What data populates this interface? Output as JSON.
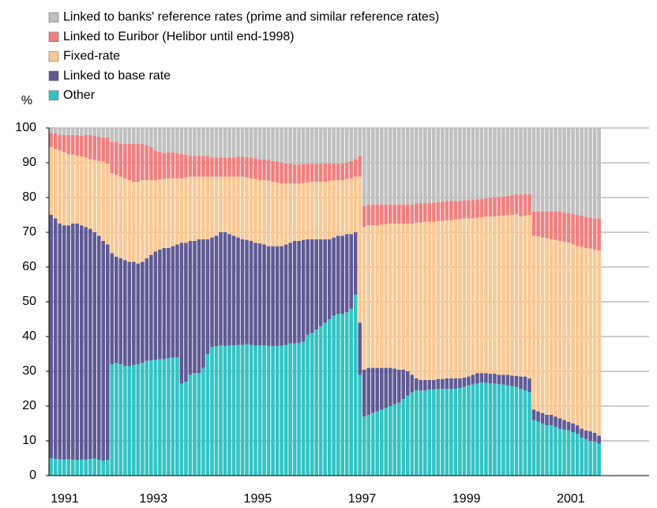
{
  "chart_data": {
    "type": "stacked_bar",
    "y_label": "%",
    "ylim": [
      0,
      100
    ],
    "yticks": [
      0,
      10,
      20,
      30,
      40,
      50,
      60,
      70,
      80,
      90,
      100
    ],
    "grid": true,
    "legend": "top",
    "categories": [
      "1991",
      null,
      null,
      null,
      null,
      null,
      null,
      null,
      null,
      null,
      null,
      null,
      null,
      null,
      null,
      null,
      null,
      null,
      null,
      null,
      null,
      null,
      null,
      null,
      "1993",
      null,
      null,
      null,
      null,
      null,
      null,
      null,
      null,
      null,
      null,
      null,
      null,
      null,
      null,
      null,
      null,
      null,
      null,
      null,
      null,
      null,
      null,
      null,
      "1995",
      null,
      null,
      null,
      null,
      null,
      null,
      null,
      null,
      null,
      null,
      null,
      null,
      null,
      null,
      null,
      null,
      null,
      null,
      null,
      null,
      null,
      null,
      null,
      "1997",
      null,
      null,
      null,
      null,
      null,
      null,
      null,
      null,
      null,
      null,
      null,
      null,
      null,
      null,
      null,
      null,
      null,
      null,
      null,
      null,
      null,
      null,
      null,
      "1999",
      null,
      null,
      null,
      null,
      null,
      null,
      null,
      null,
      null,
      null,
      null,
      null,
      null,
      null,
      null,
      null,
      null,
      null,
      null,
      null,
      null,
      null,
      null,
      "2001",
      null,
      null,
      null,
      null,
      null,
      null,
      null,
      null,
      null,
      null,
      null,
      null,
      null,
      null,
      null,
      null,
      null
    ],
    "series": [
      {
        "name": "Other",
        "color": "#33c3c3",
        "values": [
          5,
          4.8,
          4.7,
          4.6,
          4.7,
          4.6,
          4.5,
          4.6,
          4.6,
          4.7,
          5,
          4.5,
          4.3,
          4.5,
          32,
          32.5,
          32,
          31.5,
          31.5,
          31.8,
          32,
          32.5,
          33,
          33.2,
          33.3,
          33.5,
          33.5,
          33.8,
          34,
          34,
          26.5,
          27,
          29,
          29.5,
          29.5,
          31,
          35,
          37,
          37.2,
          37.5,
          37.3,
          37.5,
          37.5,
          37.6,
          37.6,
          37.8,
          37.6,
          37.4,
          37.5,
          37.5,
          37.3,
          37.2,
          37.3,
          37.4,
          37.6,
          38,
          38,
          38.2,
          38.5,
          40.5,
          41,
          42,
          43,
          44,
          45,
          46,
          46.5,
          46.5,
          47,
          48,
          52,
          29,
          17,
          17.5,
          18,
          18.5,
          19,
          19.5,
          20,
          20.5,
          21,
          22,
          23,
          24,
          24.5,
          24.5,
          24.5,
          24.8,
          24.8,
          25,
          25,
          25,
          25,
          25,
          25.2,
          25.5,
          26,
          26.2,
          26.5,
          26.8,
          26.7,
          26.5,
          26.5,
          26.3,
          26.2,
          26,
          25.8,
          25.5,
          25,
          24.5,
          24,
          16,
          15.5,
          15,
          14.5,
          14.5,
          14,
          13.5,
          13.2,
          13,
          12.5,
          12,
          11,
          10.5,
          10,
          9.8,
          9.2,
          null,
          null,
          null,
          null,
          null,
          null,
          null,
          null,
          null,
          null,
          null
        ]
      },
      {
        "name": "Linked to base rate",
        "color": "#5f5a94",
        "values": [
          70,
          69.2,
          67.8,
          67.4,
          67.3,
          67.9,
          68,
          67.4,
          66.9,
          66.3,
          65,
          64.5,
          63.2,
          62,
          32,
          30.5,
          30.5,
          30.5,
          30,
          29.7,
          29,
          29,
          29.5,
          30.3,
          31.2,
          31.5,
          32,
          31.7,
          32,
          32.5,
          40.5,
          40,
          38.5,
          38,
          38.5,
          37,
          33,
          31.5,
          31.8,
          32.5,
          32.7,
          32,
          31.5,
          30.9,
          30.4,
          30,
          29.9,
          29.6,
          29.3,
          29,
          28.7,
          28.8,
          28.7,
          28.6,
          28.9,
          29,
          29.5,
          29.3,
          29.3,
          27.5,
          27,
          26,
          25,
          24,
          23,
          22.5,
          22.5,
          22.5,
          22.5,
          21.5,
          18,
          15,
          13.5,
          13.5,
          13,
          12.5,
          12,
          11.5,
          11,
          10.3,
          9.5,
          8.5,
          7,
          5,
          3.5,
          3,
          3,
          2.7,
          2.7,
          2.8,
          2.8,
          3,
          3,
          3,
          2.8,
          2.7,
          2.5,
          2.8,
          3,
          2.7,
          2.8,
          2.8,
          2.8,
          2.7,
          2.8,
          3,
          3,
          3.2,
          3.5,
          4,
          4,
          3,
          3,
          3,
          3,
          3,
          3,
          3,
          2.8,
          2.5,
          2.5,
          2.5,
          2.5,
          2.5,
          2.8,
          2.5,
          2.3,
          null,
          null,
          null,
          null,
          null,
          null,
          null,
          null,
          null,
          null,
          null
        ]
      },
      {
        "name": "Fixed-rate",
        "color": "#f9c894",
        "values": [
          19.5,
          20,
          21,
          21,
          20.5,
          19.8,
          19.5,
          19.8,
          20,
          20,
          20.8,
          21.5,
          22.8,
          23.3,
          23,
          23.5,
          23.5,
          23.5,
          23.5,
          23,
          23.5,
          23.5,
          22.5,
          21.5,
          20.5,
          20.2,
          19.8,
          20,
          19.5,
          19,
          18.5,
          18.8,
          18.5,
          18.5,
          18,
          18,
          18,
          17.5,
          17,
          16,
          16,
          16.5,
          17,
          17.5,
          18,
          18,
          18,
          18.3,
          18.2,
          18.5,
          18.8,
          18.5,
          18.3,
          18,
          17.5,
          17,
          16.5,
          16.5,
          16.4,
          16.3,
          16.5,
          16.5,
          16.5,
          16.5,
          16.8,
          16.5,
          16,
          16,
          15.8,
          16,
          16,
          42,
          41,
          41,
          41,
          41,
          41.2,
          41.3,
          41.5,
          41.7,
          42,
          42,
          42.5,
          43.5,
          44.8,
          45.3,
          45.5,
          45.5,
          45.5,
          45.4,
          45.5,
          45.5,
          45.5,
          45.7,
          45.8,
          45.8,
          45.5,
          45,
          44.7,
          44.8,
          45,
          45.2,
          45.2,
          45.7,
          45.8,
          46,
          46.2,
          46.5,
          46,
          46.3,
          47,
          50,
          50.3,
          50.5,
          50.8,
          50.5,
          50.8,
          51,
          51.3,
          51.5,
          51.5,
          51.5,
          52.3,
          52.5,
          52.5,
          52.7,
          53.3,
          null,
          null,
          null,
          null,
          null,
          null,
          null,
          null,
          null,
          null,
          null
        ]
      },
      {
        "name": "Linked to Euribor (Helibor until end-1998)",
        "color": "#f08080",
        "values": [
          4,
          4.5,
          4.5,
          5,
          5.5,
          5.7,
          6,
          6,
          6.5,
          7,
          7,
          7,
          7,
          7.5,
          9,
          9.5,
          9.5,
          10,
          10.5,
          11,
          11,
          10.5,
          10,
          9.5,
          8.5,
          8,
          7.5,
          7.5,
          7.5,
          7.3,
          7,
          6.5,
          6,
          6,
          6,
          6,
          6,
          5.5,
          5.5,
          5.5,
          5.5,
          5.5,
          5.5,
          5.7,
          5.8,
          5.8,
          6,
          6,
          6,
          6,
          6,
          6,
          6,
          6,
          5.8,
          5.8,
          5.5,
          5.5,
          5.5,
          5.5,
          5.3,
          5.3,
          5.3,
          5.3,
          5,
          4.8,
          4.8,
          4.8,
          4.7,
          5,
          5,
          6,
          6,
          6,
          6,
          6,
          5.8,
          5.7,
          5.5,
          5.5,
          5.5,
          5.5,
          5.5,
          5.5,
          5.5,
          5.5,
          5.5,
          5.5,
          5.5,
          5.5,
          5.5,
          5.5,
          5.5,
          5.3,
          5.2,
          5.2,
          5.2,
          5.3,
          5.3,
          5.3,
          5.3,
          5.5,
          5.5,
          5.5,
          5.5,
          5.5,
          5.7,
          5.7,
          6.3,
          6.2,
          6,
          7,
          7.2,
          7.5,
          7.7,
          8,
          8.2,
          8.5,
          8.5,
          8.5,
          8.8,
          9,
          9,
          9,
          9,
          9,
          9.2,
          null,
          null,
          null,
          null,
          null,
          null,
          null,
          null,
          null,
          null,
          null
        ]
      },
      {
        "name": "Linked to banks' reference rates (prime and similar reference rates)",
        "color": "#c0c0c0",
        "values": [
          1.5,
          1.5,
          2,
          2,
          2,
          2,
          2,
          2.2,
          2,
          2,
          2.2,
          2.5,
          2.7,
          2.7,
          4,
          4,
          4.5,
          4.5,
          4.5,
          4.5,
          4.5,
          4.5,
          5,
          5.5,
          6.5,
          6.8,
          7.2,
          7,
          7,
          7.2,
          7.5,
          7.7,
          8,
          8,
          8,
          8,
          8,
          8.5,
          8.5,
          8.5,
          8.5,
          8.5,
          8.5,
          8.3,
          8.2,
          8.4,
          8.5,
          8.7,
          9,
          9,
          9.2,
          9.5,
          9.7,
          10,
          10.2,
          10.2,
          10.5,
          10.5,
          10.3,
          10.2,
          10.2,
          10.2,
          10.2,
          10.2,
          10.2,
          10.2,
          10.2,
          10.2,
          10,
          9.5,
          9,
          8,
          22.5,
          22,
          22,
          22,
          22,
          22,
          22,
          22,
          22,
          22,
          22,
          22,
          21.7,
          21.7,
          21.5,
          21.5,
          21.5,
          21.3,
          21.2,
          21,
          21,
          21,
          21,
          20.8,
          20.8,
          20.7,
          20.5,
          20.4,
          20.2,
          20,
          20,
          19.8,
          19.7,
          19.5,
          19.3,
          19.1,
          19.2,
          19,
          19,
          24,
          24,
          24,
          24,
          24,
          24,
          24,
          24.2,
          24.5,
          24.7,
          25,
          25.2,
          25.5,
          25.7,
          26,
          26,
          null,
          null,
          null,
          null,
          null,
          null,
          null,
          null,
          null,
          null,
          null
        ]
      }
    ]
  }
}
